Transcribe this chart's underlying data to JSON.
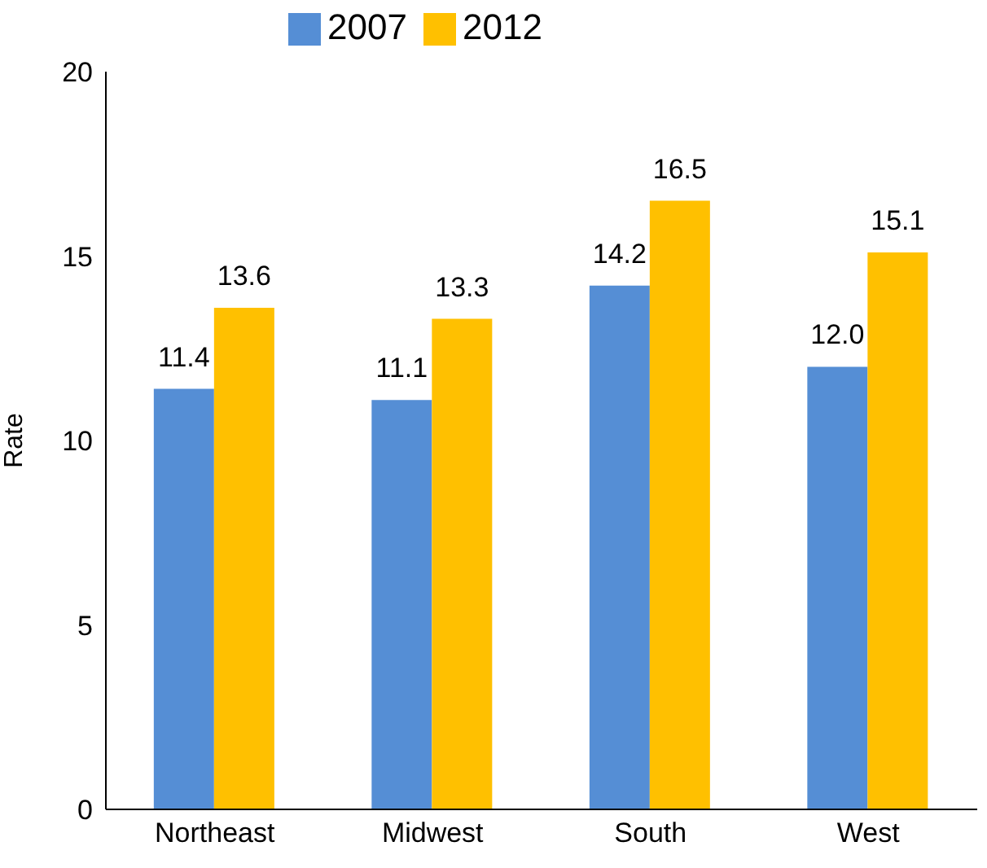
{
  "chart_data": {
    "type": "bar",
    "ylabel": "Rate",
    "categories": [
      "Northeast",
      "Midwest",
      "South",
      "West"
    ],
    "series": [
      {
        "name": "2007",
        "color": "#558ed5",
        "values": [
          11.4,
          11.1,
          14.2,
          12.0
        ],
        "value_labels": [
          "11.4",
          "11.1",
          "14.2",
          "12.0"
        ]
      },
      {
        "name": "2012",
        "color": "#ffc000",
        "values": [
          13.6,
          13.3,
          16.5,
          15.1
        ],
        "value_labels": [
          "13.6",
          "13.3",
          "16.5",
          "15.1"
        ]
      }
    ],
    "ylim": [
      0,
      20
    ],
    "yticks": [
      0,
      5,
      10,
      15,
      20
    ],
    "grid": false,
    "legend": "top"
  }
}
